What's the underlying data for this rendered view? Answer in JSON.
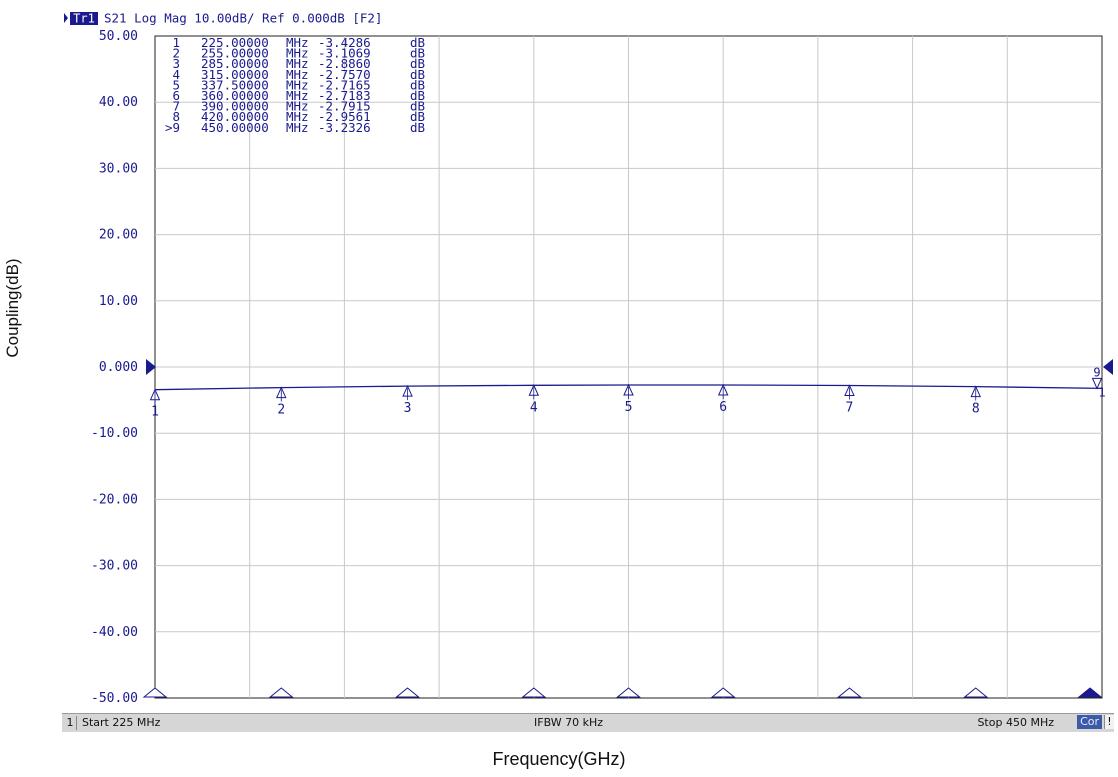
{
  "ylabel": "Coupling(dB)",
  "xlabel": "Frequency(GHz)",
  "header": {
    "trace_badge": "Tr1",
    "trace_info": "S21 Log Mag 10.00dB/ Ref 0.000dB [F2]"
  },
  "status": {
    "channel": "1",
    "start": "Start 225 MHz",
    "ifbw": "IFBW 70 kHz",
    "stop": "Stop 450 MHz",
    "cor": "Cor",
    "flag": "!"
  },
  "colors": {
    "trace": "#1a1a8e",
    "text": "#1a1a8e",
    "grid": "#c9c9c9",
    "badge_bg": "#1a1a8e",
    "marker_fill": "#ffffff"
  },
  "chart_data": {
    "type": "line",
    "x_unit": "MHz",
    "y_unit": "dB",
    "xlim": [
      225,
      450
    ],
    "ylim": [
      -50,
      50
    ],
    "x_divisions": 10,
    "y_ticks": [
      "50.00",
      "40.00",
      "30.00",
      "20.00",
      "10.00",
      "0.000",
      "-10.00",
      "-20.00",
      "-30.00",
      "-40.00",
      "-50.00"
    ],
    "grid": true,
    "reference_level": 0,
    "series": [
      {
        "x": [
          225,
          255,
          285,
          315,
          337.5,
          360,
          390,
          420,
          450
        ],
        "y": [
          -3.4286,
          -3.1069,
          -2.886,
          -2.757,
          -2.7165,
          -2.7183,
          -2.7915,
          -2.9561,
          -3.2326
        ]
      }
    ],
    "markers": [
      {
        "label": "1",
        "freq": "225.00000",
        "value": "-3.4286"
      },
      {
        "label": "2",
        "freq": "255.00000",
        "value": "-3.1069"
      },
      {
        "label": "3",
        "freq": "285.00000",
        "value": "-2.8860"
      },
      {
        "label": "4",
        "freq": "315.00000",
        "value": "-2.7570"
      },
      {
        "label": "5",
        "freq": "337.50000",
        "value": "-2.7165"
      },
      {
        "label": "6",
        "freq": "360.00000",
        "value": "-2.7183"
      },
      {
        "label": "7",
        "freq": "390.00000",
        "value": "-2.7915"
      },
      {
        "label": "8",
        "freq": "420.00000",
        "value": "-2.9561"
      },
      {
        "label": ">9",
        "freq": "450.00000",
        "value": "-3.2326"
      }
    ],
    "marker_unit_freq": "MHz",
    "marker_unit_value": "dB"
  }
}
